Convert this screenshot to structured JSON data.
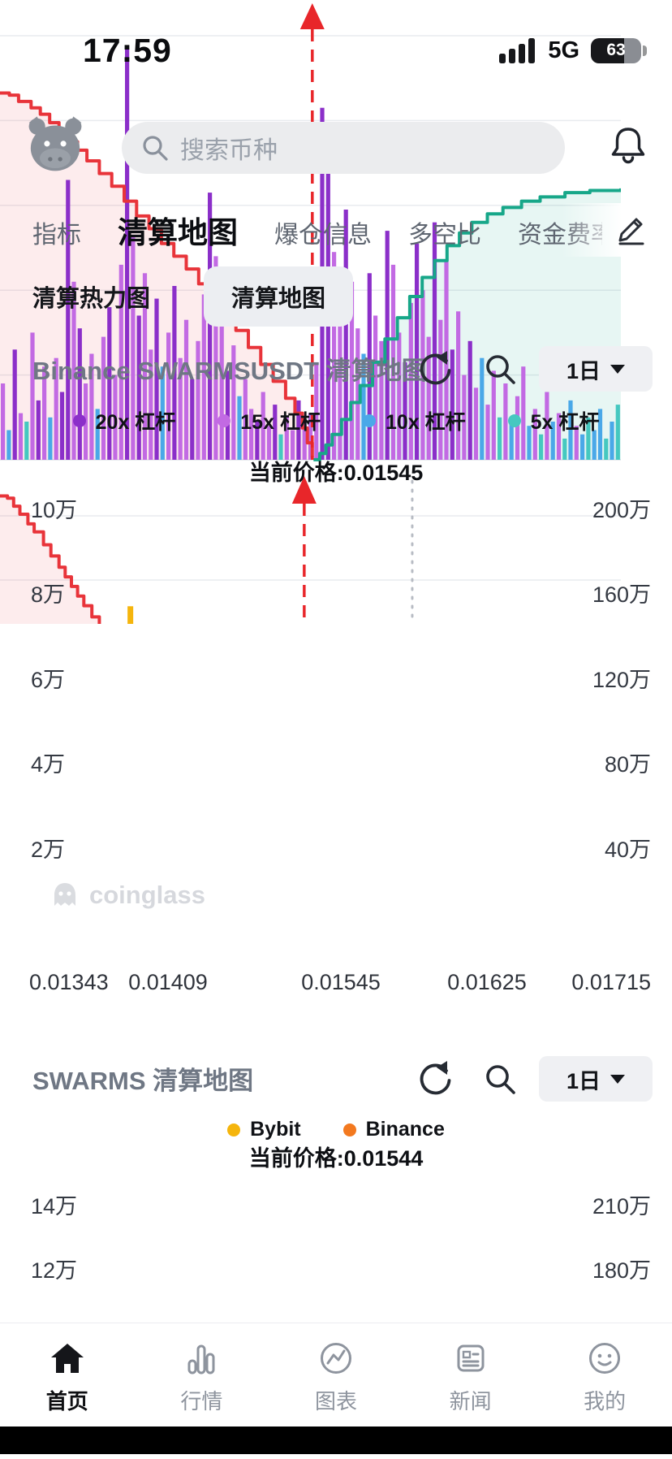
{
  "status_bar": {
    "time": "17:59",
    "network": "5G",
    "battery_percent": "63"
  },
  "header": {
    "search_placeholder": "搜索币种"
  },
  "top_tabs": {
    "items": [
      {
        "label": "指标",
        "active": false
      },
      {
        "label": "清算地图",
        "active": true
      },
      {
        "label": "爆仓信息",
        "active": false
      },
      {
        "label": "多空比",
        "active": false
      },
      {
        "label": "资金费率",
        "active": false
      }
    ]
  },
  "sub_tabs": {
    "items": [
      {
        "label": "清算热力图",
        "active": false
      },
      {
        "label": "清算地图",
        "active": true
      }
    ]
  },
  "watermark": "coinglass",
  "bottom_nav": {
    "items": [
      {
        "label": "首页",
        "active": true
      },
      {
        "label": "行情",
        "active": false
      },
      {
        "label": "图表",
        "active": false
      },
      {
        "label": "新闻",
        "active": false
      },
      {
        "label": "我的",
        "active": false
      }
    ]
  },
  "chart_data": [
    {
      "type": "bar",
      "title": "Binance SWARMSUSDT 清算地图",
      "period": "1日",
      "current_price": 0.01545,
      "current_price_label": "当前价格:0.01545",
      "price_line_fraction": 0.503,
      "price_line_color": "#e8262a",
      "x_ticks": [
        "0.01343",
        "0.01409",
        "0.01545",
        "0.01625",
        "0.01715"
      ],
      "y_left_ticks": [
        "10万",
        "8万",
        "6万",
        "4万",
        "2万"
      ],
      "y_right_ticks": [
        "200万",
        "160万",
        "120万",
        "80万",
        "40万"
      ],
      "y_left_max_wan": 10,
      "y_right_max_wan": 200,
      "legend": [
        {
          "label": "20x 杠杆",
          "color": "#8b2fc9"
        },
        {
          "label": "15x 杠杆",
          "color": "#c26ae3"
        },
        {
          "label": "10x 杠杆",
          "color": "#4aa8e8"
        },
        {
          "label": "5x 杠杆",
          "color": "#45c8c0"
        }
      ],
      "bar_colors": [
        "#8b2fc9",
        "#c26ae3",
        "#4aa8e8",
        "#45c8c0"
      ],
      "bars": [
        [
          1.8,
          1
        ],
        [
          0.7,
          2
        ],
        [
          2.6,
          0
        ],
        [
          1.1,
          1
        ],
        [
          0.9,
          3
        ],
        [
          3.0,
          1
        ],
        [
          1.4,
          0
        ],
        [
          2.2,
          1
        ],
        [
          1.0,
          2
        ],
        [
          2.4,
          1
        ],
        [
          1.6,
          0
        ],
        [
          6.6,
          0
        ],
        [
          4.2,
          1
        ],
        [
          3.1,
          0
        ],
        [
          1.8,
          1
        ],
        [
          2.5,
          1
        ],
        [
          1.2,
          2
        ],
        [
          2.9,
          1
        ],
        [
          3.6,
          0
        ],
        [
          2.0,
          1
        ],
        [
          4.6,
          1
        ],
        [
          9.7,
          0
        ],
        [
          5.3,
          1
        ],
        [
          3.4,
          0
        ],
        [
          4.4,
          1
        ],
        [
          2.6,
          1
        ],
        [
          3.8,
          0
        ],
        [
          2.2,
          2
        ],
        [
          3.0,
          1
        ],
        [
          4.1,
          0
        ],
        [
          2.4,
          1
        ],
        [
          3.3,
          1
        ],
        [
          1.9,
          0
        ],
        [
          2.8,
          1
        ],
        [
          3.9,
          1
        ],
        [
          6.3,
          0
        ],
        [
          4.8,
          1
        ],
        [
          3.2,
          1
        ],
        [
          2.1,
          0
        ],
        [
          2.7,
          1
        ],
        [
          1.5,
          2
        ],
        [
          1.9,
          1
        ],
        [
          1.2,
          1
        ],
        [
          0.9,
          0
        ],
        [
          1.6,
          1
        ],
        [
          0.8,
          1
        ],
        [
          1.3,
          0
        ],
        [
          0.6,
          3
        ],
        [
          1.0,
          1
        ],
        [
          0.7,
          1
        ],
        [
          1.4,
          0
        ],
        [
          0.9,
          1
        ],
        [
          1.1,
          1
        ],
        [
          2.3,
          1
        ],
        [
          8.3,
          0
        ],
        [
          6.8,
          0
        ],
        [
          4.9,
          1
        ],
        [
          3.6,
          1
        ],
        [
          5.9,
          0
        ],
        [
          4.2,
          1
        ],
        [
          3.1,
          1
        ],
        [
          2.5,
          2
        ],
        [
          4.4,
          0
        ],
        [
          3.4,
          1
        ],
        [
          2.8,
          1
        ],
        [
          5.4,
          0
        ],
        [
          4.6,
          1
        ],
        [
          3.0,
          1
        ],
        [
          2.3,
          0
        ],
        [
          3.7,
          1
        ],
        [
          5.1,
          0
        ],
        [
          4.0,
          1
        ],
        [
          2.9,
          1
        ],
        [
          5.6,
          0
        ],
        [
          3.3,
          1
        ],
        [
          4.7,
          1
        ],
        [
          2.6,
          0
        ],
        [
          3.5,
          1
        ],
        [
          2.0,
          1
        ],
        [
          2.8,
          0
        ],
        [
          1.7,
          1
        ],
        [
          2.4,
          2
        ],
        [
          1.3,
          1
        ],
        [
          2.1,
          1
        ],
        [
          1.0,
          3
        ],
        [
          1.8,
          1
        ],
        [
          0.9,
          2
        ],
        [
          1.5,
          1
        ],
        [
          2.2,
          1
        ],
        [
          0.8,
          2
        ],
        [
          1.2,
          1
        ],
        [
          0.6,
          3
        ],
        [
          1.6,
          1
        ],
        [
          0.9,
          2
        ],
        [
          1.1,
          1
        ],
        [
          0.5,
          3
        ],
        [
          1.4,
          2
        ],
        [
          0.8,
          1
        ],
        [
          0.6,
          2
        ],
        [
          1.0,
          3
        ],
        [
          0.7,
          2
        ],
        [
          1.2,
          2
        ],
        [
          0.5,
          3
        ],
        [
          0.9,
          2
        ],
        [
          1.3,
          3
        ]
      ],
      "cum_short_line": {
        "color": "#e8343a",
        "fill": "rgba(236,69,78,0.10)",
        "points": [
          [
            0,
            8.65
          ],
          [
            0.015,
            8.6
          ],
          [
            0.03,
            8.45
          ],
          [
            0.05,
            8.3
          ],
          [
            0.065,
            8.15
          ],
          [
            0.08,
            7.95
          ],
          [
            0.095,
            7.75
          ],
          [
            0.11,
            7.5
          ],
          [
            0.125,
            7.3
          ],
          [
            0.14,
            7.05
          ],
          [
            0.16,
            6.75
          ],
          [
            0.18,
            6.45
          ],
          [
            0.2,
            6.1
          ],
          [
            0.22,
            5.75
          ],
          [
            0.24,
            5.45
          ],
          [
            0.26,
            5.1
          ],
          [
            0.28,
            4.8
          ],
          [
            0.3,
            4.5
          ],
          [
            0.32,
            4.15
          ],
          [
            0.34,
            3.8
          ],
          [
            0.36,
            3.45
          ],
          [
            0.38,
            3.05
          ],
          [
            0.4,
            2.65
          ],
          [
            0.42,
            2.25
          ],
          [
            0.44,
            1.85
          ],
          [
            0.46,
            1.45
          ],
          [
            0.475,
            1.1
          ],
          [
            0.487,
            0.75
          ],
          [
            0.495,
            0.4
          ],
          [
            0.503,
            0.05
          ]
        ]
      },
      "cum_long_line": {
        "color": "#17a789",
        "fill": "rgba(23,167,137,0.10)",
        "points": [
          [
            0.505,
            0.05
          ],
          [
            0.515,
            3
          ],
          [
            0.525,
            7
          ],
          [
            0.535,
            12
          ],
          [
            0.55,
            19
          ],
          [
            0.565,
            27
          ],
          [
            0.58,
            35
          ],
          [
            0.6,
            46
          ],
          [
            0.62,
            57
          ],
          [
            0.64,
            67
          ],
          [
            0.66,
            77
          ],
          [
            0.68,
            86
          ],
          [
            0.7,
            94
          ],
          [
            0.72,
            101
          ],
          [
            0.74,
            107
          ],
          [
            0.76,
            112
          ],
          [
            0.785,
            116
          ],
          [
            0.81,
            119
          ],
          [
            0.84,
            122
          ],
          [
            0.87,
            124
          ],
          [
            0.91,
            126
          ],
          [
            0.95,
            127
          ],
          [
            1.0,
            128
          ]
        ]
      }
    },
    {
      "type": "line",
      "title": "SWARMS 清算地图",
      "period": "1日",
      "current_price": 0.01544,
      "current_price_label": "当前价格:0.01544",
      "price_line_fraction": 0.49,
      "price_line_color": "#e8262a",
      "dotted_marker_fraction": 0.664,
      "y_left_ticks": [
        "14万",
        "12万"
      ],
      "y_right_ticks": [
        "210万",
        "180万"
      ],
      "legend": [
        {
          "label": "Bybit",
          "color": "#f5b50d"
        },
        {
          "label": "Binance",
          "color": "#f3791f"
        }
      ],
      "line": {
        "color": "#e8343a",
        "fill": "rgba(236,69,78,0.10)",
        "points": [
          [
            0,
            14.62
          ],
          [
            0.012,
            14.55
          ],
          [
            0.022,
            14.3
          ],
          [
            0.032,
            14.05
          ],
          [
            0.045,
            13.75
          ],
          [
            0.055,
            13.5
          ],
          [
            0.07,
            13.1
          ],
          [
            0.082,
            12.75
          ],
          [
            0.095,
            12.4
          ],
          [
            0.105,
            12.1
          ],
          [
            0.115,
            11.8
          ],
          [
            0.125,
            11.5
          ],
          [
            0.135,
            11.2
          ],
          [
            0.148,
            10.85
          ],
          [
            0.16,
            10.5
          ],
          [
            0.172,
            10.15
          ]
        ]
      },
      "bars": [
        {
          "fraction": 0.21,
          "height_wan": 0.55,
          "color": "#f5b50d"
        }
      ]
    }
  ]
}
